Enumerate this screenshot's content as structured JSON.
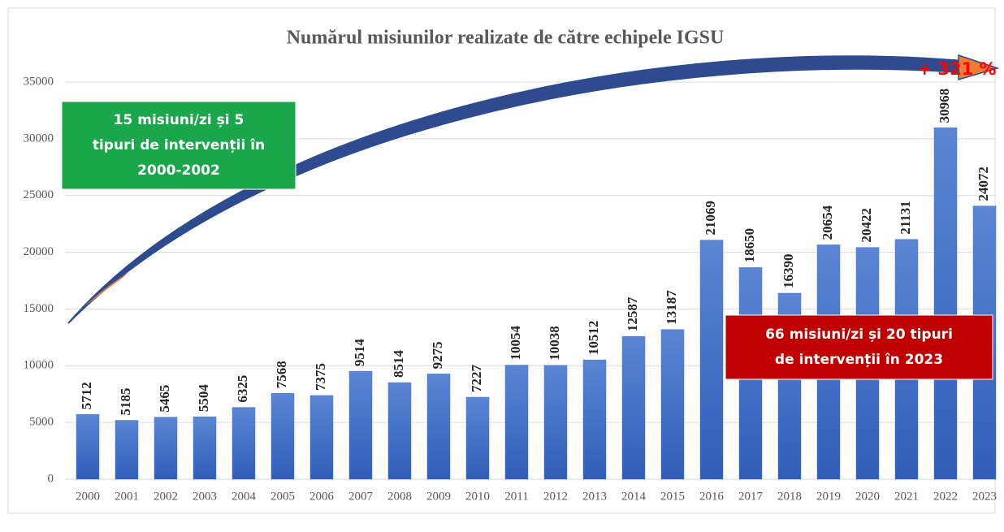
{
  "chart_data": {
    "type": "bar",
    "title": "Numărul misiunilor realizate de către echipele IGSU",
    "categories": [
      "2000",
      "2001",
      "2002",
      "2003",
      "2004",
      "2005",
      "2006",
      "2007",
      "2008",
      "2009",
      "2010",
      "2011",
      "2012",
      "2013",
      "2014",
      "2015",
      "2016",
      "2017",
      "2018",
      "2019",
      "2020",
      "2021",
      "2022",
      "2023"
    ],
    "values": [
      5712,
      5185,
      5465,
      5504,
      6325,
      7568,
      7375,
      9514,
      8514,
      9275,
      7227,
      10054,
      10038,
      10512,
      12587,
      13187,
      21069,
      18650,
      16390,
      20654,
      20422,
      21131,
      30968,
      24072
    ],
    "color": "#4472c4",
    "ylim": [
      0,
      35000
    ],
    "yticks": [
      0,
      5000,
      10000,
      15000,
      20000,
      25000,
      30000,
      35000
    ],
    "grid": true,
    "annotations": [
      {
        "lines": [
          "15 misiuni/zi și 5",
          "tipuri de intervenții în",
          "2000-2002"
        ],
        "color": "#1aa64a"
      },
      {
        "lines": [
          "66 misiuni/zi și 20 tipuri",
          "de intervenții în 2023"
        ],
        "color": "#c00000"
      },
      {
        "lines": [
          "+ 321 %"
        ],
        "color": "#ff0000"
      }
    ]
  }
}
